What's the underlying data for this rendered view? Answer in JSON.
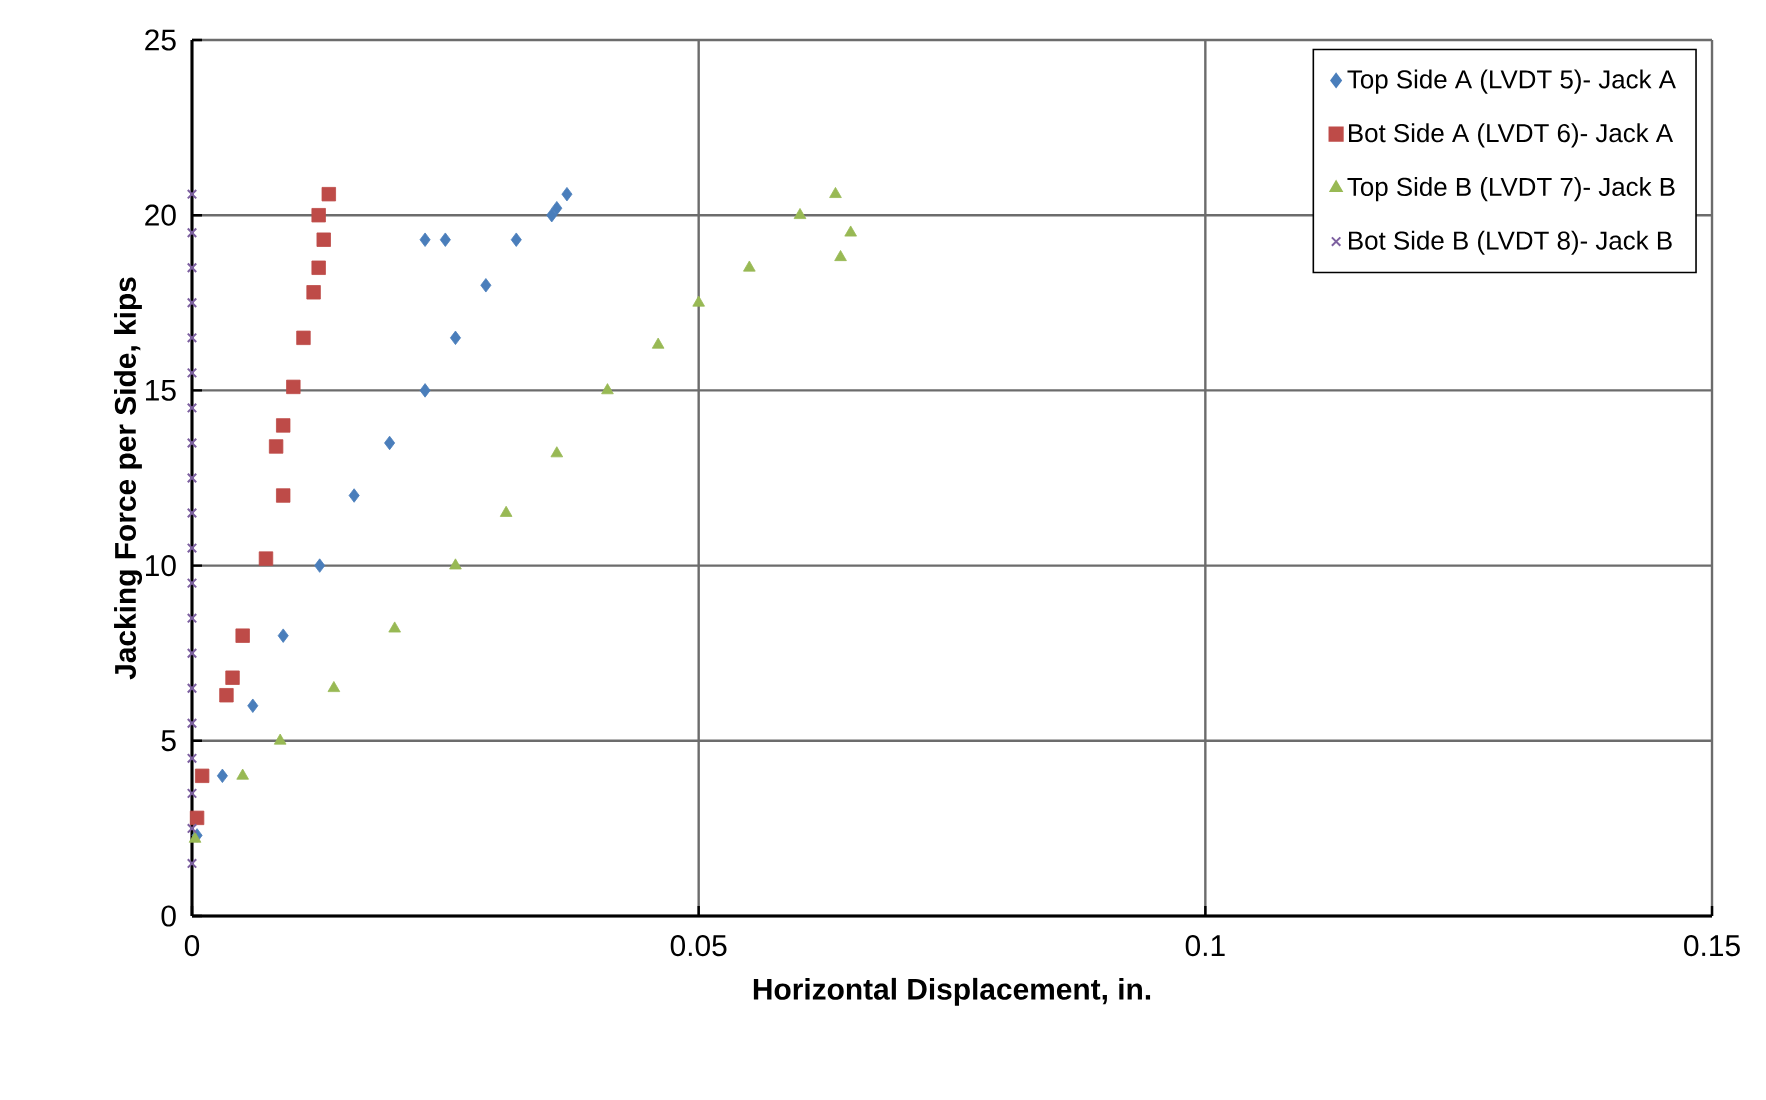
{
  "chart_data": {
    "type": "scatter",
    "xlabel": "Horizontal Displacement, in.",
    "ylabel": "Jacking Force per Side, kips",
    "xlim": [
      0,
      0.15
    ],
    "ylim": [
      0,
      25
    ],
    "xticks": [
      0,
      0.05,
      0.1,
      0.15
    ],
    "yticks": [
      0,
      5,
      10,
      15,
      20,
      25
    ],
    "grid": true,
    "legend": "top right",
    "series": [
      {
        "name": "Top Side A (LVDT 5)- Jack A",
        "color": "#4a7ebb",
        "marker": "diamond",
        "x": [
          0.0005,
          0.003,
          0.006,
          0.009,
          0.0126,
          0.016,
          0.0195,
          0.023,
          0.026,
          0.029,
          0.032,
          0.0355,
          0.036,
          0.037,
          0.023,
          0.025
        ],
        "values": [
          2.3,
          4,
          6,
          8,
          10,
          12,
          13.5,
          15,
          16.5,
          18,
          19.3,
          20,
          20.2,
          20.6,
          19.3,
          19.3
        ]
      },
      {
        "name": "Bot Side A (LVDT 6)- Jack A",
        "color": "#be4b48",
        "marker": "square",
        "x": [
          0.0005,
          0.001,
          0.0034,
          0.004,
          0.005,
          0.0073,
          0.009,
          0.0083,
          0.009,
          0.01,
          0.011,
          0.012,
          0.0125,
          0.013,
          0.0125,
          0.0135
        ],
        "values": [
          2.8,
          4,
          6.3,
          6.8,
          8,
          10.2,
          12,
          13.4,
          14,
          15.1,
          16.5,
          17.8,
          18.5,
          19.3,
          20,
          20.6
        ]
      },
      {
        "name": "Top Side B (LVDT 7)- Jack B",
        "color": "#98b954",
        "marker": "triangle",
        "x": [
          0.0003,
          0.005,
          0.0087,
          0.014,
          0.02,
          0.026,
          0.031,
          0.036,
          0.041,
          0.046,
          0.05,
          0.055,
          0.06,
          0.0635,
          0.065,
          0.064
        ],
        "values": [
          2.2,
          4,
          5,
          6.5,
          8.2,
          10,
          11.5,
          13.2,
          15,
          16.3,
          17.5,
          18.5,
          20,
          20.6,
          19.5,
          18.8
        ]
      },
      {
        "name": "Bot Side B (LVDT 8)- Jack B",
        "color": "#7d60a0",
        "marker": "cross",
        "x": [
          0,
          0,
          0,
          0,
          0,
          0,
          0,
          0,
          0,
          0,
          0,
          0,
          0,
          0,
          0,
          0,
          0,
          0,
          0,
          0
        ],
        "values": [
          1.5,
          2.5,
          3.5,
          4.5,
          5.5,
          6.5,
          7.5,
          8.5,
          9.5,
          10.5,
          11.5,
          12.5,
          13.5,
          14.5,
          15.5,
          16.5,
          17.5,
          18.5,
          19.5,
          20.6
        ]
      }
    ]
  }
}
